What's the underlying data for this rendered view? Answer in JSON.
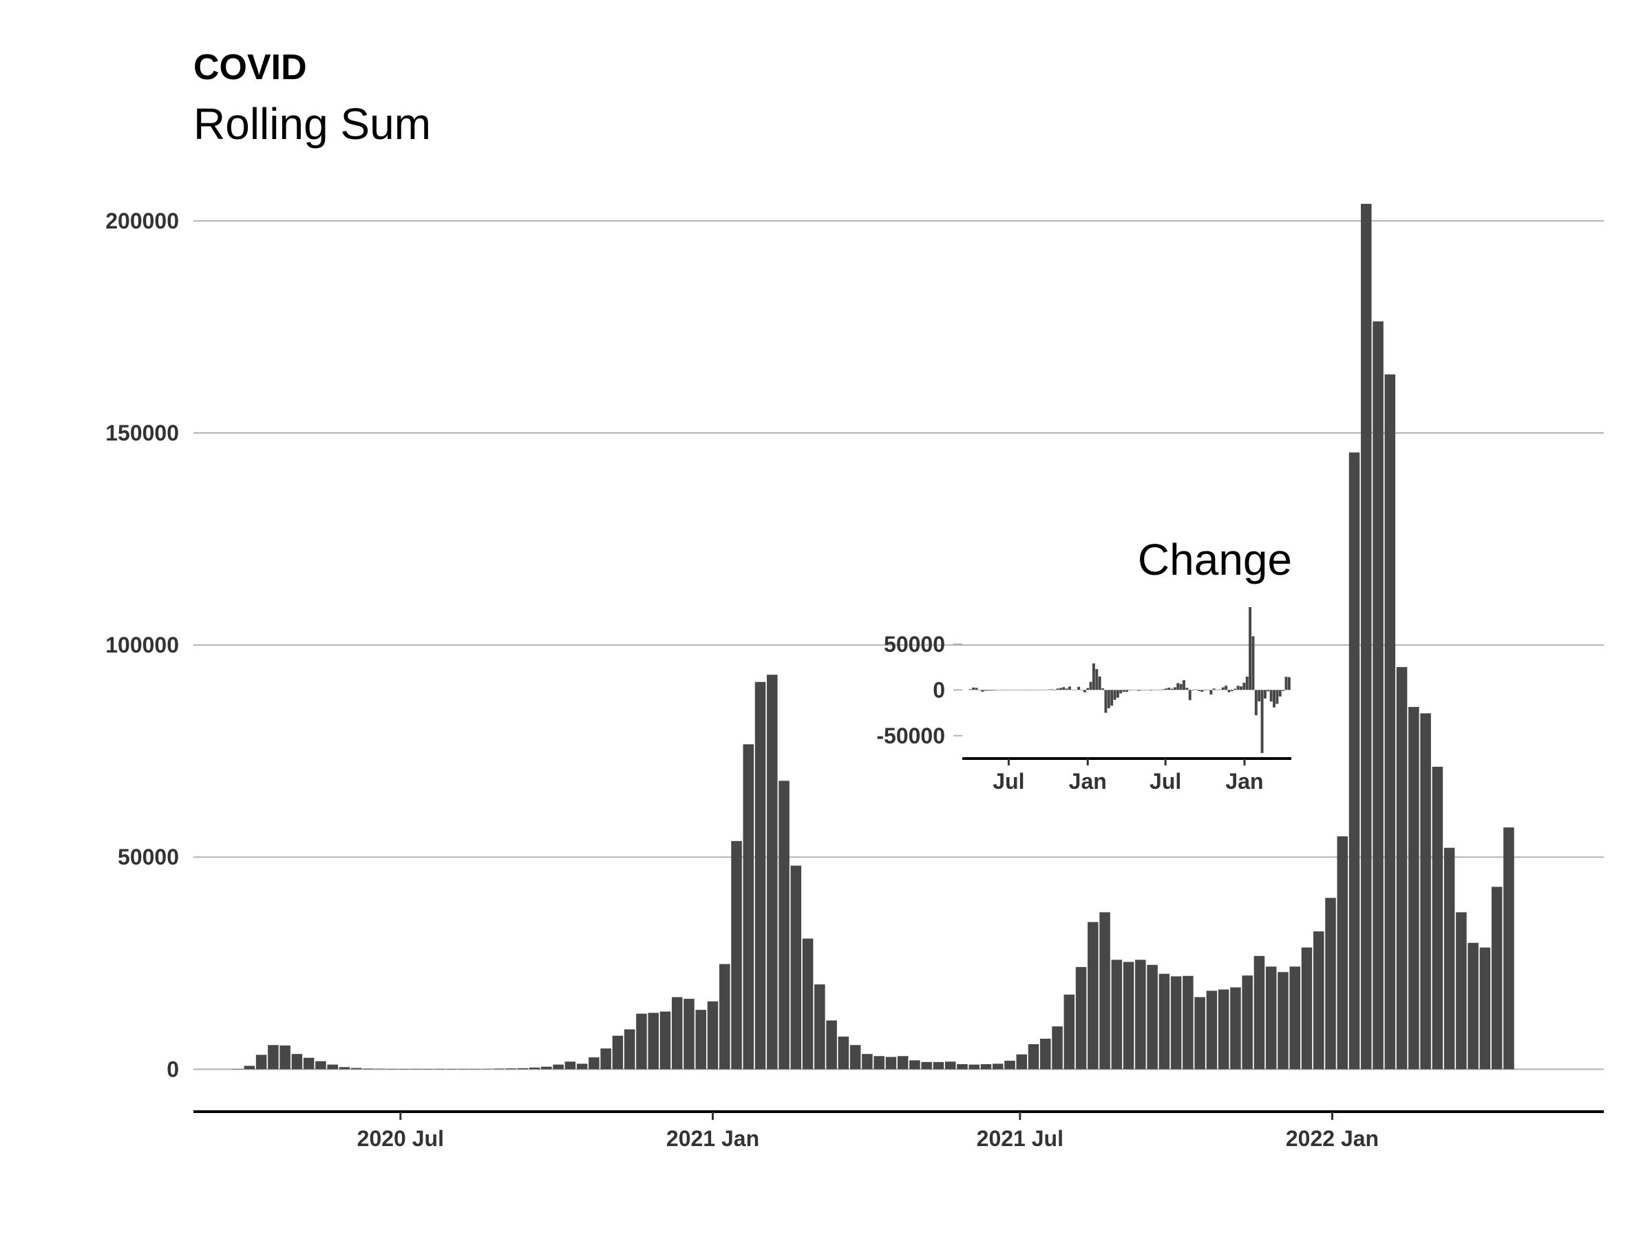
{
  "title": "COVID",
  "subtitle": "Rolling Sum",
  "chart_data": [
    {
      "type": "bar",
      "title": "COVID",
      "subtitle": "Rolling Sum",
      "x_unit": "week",
      "x_start": "2020-03-27",
      "x_step_days": 7,
      "values": [
        0,
        800,
        3400,
        5700,
        5600,
        3600,
        2700,
        1900,
        1100,
        500,
        300,
        150,
        100,
        50,
        30,
        20,
        20,
        20,
        20,
        20,
        50,
        80,
        150,
        200,
        250,
        400,
        600,
        1100,
        1800,
        1300,
        2800,
        4900,
        7900,
        9400,
        13100,
        13300,
        13600,
        17000,
        16600,
        14000,
        16000,
        24800,
        53800,
        76600,
        91300,
        93000,
        68000,
        48000,
        30800,
        20000,
        11500,
        7700,
        5700,
        3600,
        3100,
        2900,
        3100,
        2100,
        1700,
        1700,
        1800,
        1200,
        1100,
        1200,
        1300,
        2000,
        3500,
        5900,
        7200,
        10100,
        17600,
        24100,
        34700,
        37000,
        25800,
        25300,
        25800,
        24600,
        22500,
        21900,
        22000,
        17000,
        18500,
        18800,
        19300,
        22100,
        26700,
        24200,
        22900,
        24200,
        28700,
        32500,
        40400,
        54900,
        145400,
        204000,
        176300,
        163800,
        94800,
        85400,
        83900,
        71300,
        52200,
        37000,
        29800,
        28700,
        43000,
        57000
      ],
      "x_ticks": [
        "2020 Jul",
        "2021 Jan",
        "2021 Jul",
        "2022 Jan"
      ],
      "y_ticks": [
        0,
        50000,
        100000,
        150000,
        200000
      ],
      "ylim": [
        -10000,
        205000
      ],
      "grid": "horizontal"
    },
    {
      "type": "bar",
      "title": "Change",
      "x_unit": "week",
      "x_start": "2020-04-03",
      "x_step_days": 7,
      "values": [
        800,
        2600,
        2300,
        -100,
        -2000,
        -900,
        -800,
        -800,
        -600,
        -200,
        -150,
        -50,
        -50,
        -20,
        -10,
        0,
        0,
        0,
        0,
        30,
        30,
        70,
        50,
        50,
        150,
        200,
        500,
        700,
        -500,
        1500,
        2100,
        3000,
        1500,
        3700,
        200,
        300,
        3400,
        -400,
        -2600,
        2000,
        8800,
        29000,
        22800,
        14700,
        1700,
        -25000,
        -20000,
        -17200,
        -10800,
        -8500,
        -3800,
        -2000,
        -2100,
        -500,
        -200,
        200,
        -1000,
        -400,
        0,
        100,
        -600,
        -100,
        100,
        100,
        700,
        1500,
        2400,
        1300,
        2900,
        7500,
        6500,
        10600,
        2300,
        -11200,
        -500,
        500,
        -1200,
        -2100,
        -600,
        100,
        -5000,
        1500,
        300,
        500,
        2800,
        4600,
        -2500,
        -1300,
        1300,
        4500,
        3800,
        7900,
        14500,
        90500,
        58600,
        -27700,
        -12500,
        -69000,
        -9400,
        -1500,
        -12600,
        -19100,
        -15200,
        -7200,
        -1100,
        14300,
        14000
      ],
      "x_ticks": [
        "Jul",
        "Jan",
        "Jul",
        "Jan"
      ],
      "y_ticks": [
        -50000,
        0,
        50000
      ],
      "ylim": [
        -75000,
        92000
      ],
      "grid": "horizontal"
    }
  ]
}
